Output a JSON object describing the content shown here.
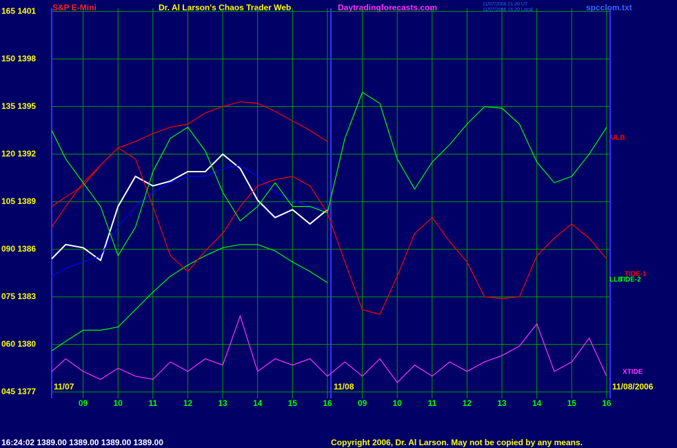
{
  "chart_data": {
    "type": "line",
    "symbol": "S&P E-Mini",
    "title": "Dr. Al Larson's Chaos Trader Web",
    "site": "Daytradingforecasts.com",
    "timestamps": [
      "11/07/2006 21:20 UT",
      "11/07/2006 16:20 Local"
    ],
    "file": "spcclom.txt",
    "annotations": [
      "11/07",
      "11/08",
      "11/08/2006"
    ],
    "quote": "16:24:02  1389.00 1389.00 1389.00 1389.00",
    "copyright": "Copyright 2006, Dr. Al Larson. May not be copied by any means.",
    "x": [
      -0.9,
      -0.5,
      0,
      0.5,
      1,
      1.5,
      2,
      2.5,
      3,
      3.5,
      4,
      4.5,
      5,
      5.5,
      6,
      6.5,
      7,
      7.5,
      8,
      8.5,
      9,
      9.5,
      10,
      10.5,
      11,
      11.5,
      12,
      12.5,
      13,
      13.5,
      14,
      14.5,
      15
    ],
    "xlim": [
      -0.9,
      15.1
    ],
    "xticks": [
      {
        "value": 0,
        "label": "09"
      },
      {
        "value": 1,
        "label": "10"
      },
      {
        "value": 2,
        "label": "11"
      },
      {
        "value": 3,
        "label": "12"
      },
      {
        "value": 4,
        "label": "13"
      },
      {
        "value": 5,
        "label": "14"
      },
      {
        "value": 6,
        "label": "15"
      },
      {
        "value": 7,
        "label": "16"
      },
      {
        "value": 8,
        "label": "09"
      },
      {
        "value": 9,
        "label": "10"
      },
      {
        "value": 10,
        "label": "11"
      },
      {
        "value": 11,
        "label": "12"
      },
      {
        "value": 12,
        "label": "13"
      },
      {
        "value": 13,
        "label": "14"
      },
      {
        "value": 14,
        "label": "15"
      },
      {
        "value": 15,
        "label": "16"
      }
    ],
    "ylim": [
      1376.6,
      1401.2
    ],
    "yticks": [
      {
        "value": 1401,
        "label": "165 1401"
      },
      {
        "value": 1398,
        "label": "150 1398"
      },
      {
        "value": 1395,
        "label": "135 1395"
      },
      {
        "value": 1392,
        "label": "120 1392"
      },
      {
        "value": 1389,
        "label": "105 1389"
      },
      {
        "value": 1386,
        "label": "090 1386"
      },
      {
        "value": 1383,
        "label": "075 1383"
      },
      {
        "value": 1380,
        "label": "060 1380"
      },
      {
        "value": 1377,
        "label": "045 1377"
      }
    ],
    "grid": true,
    "series": [
      {
        "color": "#ffffff",
        "values": [
          1385.4,
          1386.3,
          1386.1,
          1385.3,
          1388.7,
          1390.6,
          1390.0,
          1390.3,
          1390.9,
          1390.9,
          1392.0,
          1391.1,
          1389.1,
          1388.0,
          1388.5,
          1387.6,
          1388.5,
          null,
          null,
          null,
          null,
          null,
          null,
          null,
          null,
          null,
          null,
          null,
          null,
          null,
          null,
          null,
          null
        ]
      },
      {
        "color": "#0000ff",
        "values": [
          1384.3,
          1384.8,
          1385.2,
          1385.6,
          1387.4,
          1388.7,
          1389.6,
          1390.2,
          1390.6,
          1390.6,
          1391.1,
          1391.3,
          1390.6,
          1389.6,
          1389.1,
          1388.7,
          1388.5,
          null,
          null,
          null,
          null,
          null,
          null,
          null,
          null,
          null,
          null,
          null,
          null,
          null,
          null,
          null,
          null
        ]
      },
      {
        "name": "ULB",
        "color": "#ff0000",
        "values": [
          1387.4,
          1388.7,
          1390.2,
          1391.3,
          1392.4,
          1392.8,
          1393.3,
          1393.7,
          1393.9,
          1394.6,
          1395.0,
          1395.3,
          1395.2,
          1394.7,
          1394.1,
          1393.5,
          1392.8,
          null,
          null,
          null,
          null,
          null,
          null,
          null,
          null,
          null,
          null,
          null,
          null,
          null,
          null,
          null,
          null
        ]
      },
      {
        "name": "LLB",
        "color": "#00ff00",
        "values": [
          1379.6,
          1380.2,
          1380.9,
          1380.9,
          1381.1,
          1382.2,
          1383.3,
          1384.3,
          1385.0,
          1385.6,
          1386.1,
          1386.3,
          1386.3,
          1385.9,
          1385.2,
          1384.6,
          1383.9,
          null,
          null,
          null,
          null,
          null,
          null,
          null,
          null,
          null,
          null,
          null,
          null,
          null,
          null,
          null,
          null
        ]
      },
      {
        "name": "TIDE-1",
        "color": "#ff0000",
        "values": [
          1388.7,
          1389.3,
          1390.0,
          1391.3,
          1392.4,
          1391.7,
          1388.7,
          1385.6,
          1384.6,
          1385.9,
          1387.0,
          1388.7,
          1390.0,
          1390.4,
          1390.6,
          1390.0,
          1388.3,
          1385.2,
          1382.2,
          1381.9,
          1384.3,
          1387.0,
          1388.0,
          1386.5,
          1385.2,
          1383.0,
          1382.9,
          1383.0,
          1385.6,
          1386.7,
          1387.6,
          1386.7,
          1385.4
        ]
      },
      {
        "name": "TIDE-2",
        "color": "#00ff00",
        "values": [
          1393.5,
          1391.7,
          1390.2,
          1388.7,
          1385.6,
          1387.4,
          1390.9,
          1393.0,
          1393.7,
          1392.2,
          1389.6,
          1387.8,
          1388.7,
          1390.2,
          1388.7,
          1388.7,
          1388.3,
          1393.0,
          1395.9,
          1395.2,
          1391.7,
          1389.8,
          1391.5,
          1392.6,
          1393.9,
          1395.0,
          1394.9,
          1393.9,
          1391.5,
          1390.2,
          1390.6,
          1392.0,
          1393.7
        ]
      },
      {
        "name": "XTIDE",
        "color": "#ff33ff",
        "values": [
          1378.3,
          1379.1,
          1378.3,
          1377.8,
          1378.5,
          1378.0,
          1377.8,
          1378.9,
          1378.3,
          1379.1,
          1378.7,
          1381.8,
          1378.3,
          1379.1,
          1378.7,
          1379.1,
          1378.0,
          1378.9,
          1378.0,
          1379.1,
          1377.6,
          1378.7,
          1378.0,
          1378.9,
          1378.3,
          1378.9,
          1379.3,
          1379.9,
          1381.3,
          1378.3,
          1378.9,
          1380.4,
          1378.0
        ]
      }
    ]
  }
}
